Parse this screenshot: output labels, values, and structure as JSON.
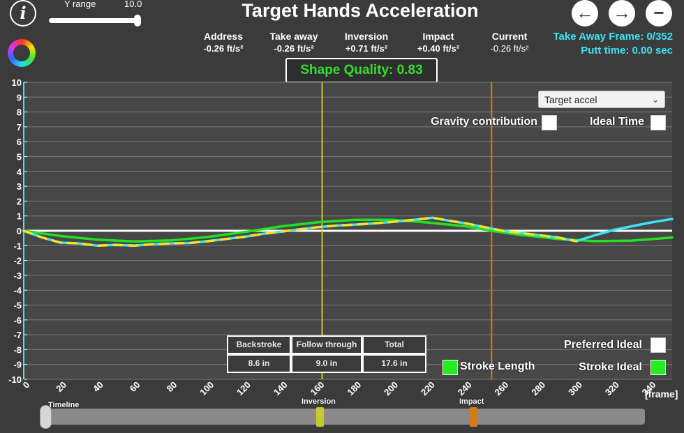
{
  "header": {
    "title": "Target Hands Acceleration",
    "y_range_label": "Y range",
    "y_range_value": "10.0",
    "y_range_level": 1.0,
    "info_label": "i"
  },
  "stats": [
    {
      "label": "Address",
      "value": "-0.26 ft/s²"
    },
    {
      "label": "Take away",
      "value": "-0.26 ft/s²"
    },
    {
      "label": "Inversion",
      "value": "+0.71 ft/s²"
    },
    {
      "label": "Impact",
      "value": "+0.40 ft/s²"
    },
    {
      "label": "Current",
      "value": "-0.26 ft/s²"
    }
  ],
  "frame_info": {
    "take_away": "Take Away Frame: 0/352",
    "putt_time": "Putt time: 0.00 sec"
  },
  "shape_quality": "Shape Quality: 0.83",
  "dropdown": {
    "selected": "Target accel"
  },
  "options": {
    "gravity": "Gravity contribution",
    "ideal_time": "Ideal Time",
    "preferred_ideal": "Preferred Ideal",
    "stroke_ideal": "Stroke Ideal",
    "stroke_length": "Stroke Length"
  },
  "stroke_table": {
    "headers": [
      "Backstroke",
      "Follow through",
      "Total"
    ],
    "values": [
      "8.6 in",
      "9.0 in",
      "17.6 in"
    ]
  },
  "timeline": {
    "label": "Timeline",
    "inversion": "Inversion",
    "impact": "Impact",
    "inversion_frame": 161,
    "impact_frame": 251
  },
  "colors": {
    "ideal": "#22e022",
    "measured_cyan": "#3fe3f5",
    "measured_yellow": "#f2e22a",
    "inversion_line": "#c8c832",
    "impact_line": "#d67a1e",
    "zero_line": "#ffffff",
    "accent": "#3fe3f5"
  },
  "chart_data": {
    "type": "line",
    "xlabel": "[frame]",
    "ylabel": "",
    "xlim": [
      0,
      352
    ],
    "ylim": [
      -10,
      10
    ],
    "xticks": [
      0,
      20,
      40,
      60,
      80,
      100,
      120,
      140,
      160,
      180,
      200,
      220,
      240,
      260,
      280,
      300,
      320,
      340
    ],
    "yticks": [
      10,
      9,
      8,
      7,
      6,
      5,
      4,
      3,
      2,
      1,
      0,
      -1,
      -2,
      -3,
      -4,
      -5,
      -6,
      -7,
      -8,
      -9,
      -10
    ],
    "grid": true,
    "inversion_x": 162,
    "impact_x": 254,
    "series": [
      {
        "color": "#22e022",
        "x": [
          0,
          20,
          40,
          60,
          80,
          100,
          120,
          140,
          160,
          180,
          200,
          220,
          240,
          254,
          270,
          290,
          310,
          330,
          352
        ],
        "y": [
          0,
          -0.35,
          -0.6,
          -0.72,
          -0.65,
          -0.42,
          -0.08,
          0.3,
          0.58,
          0.74,
          0.74,
          0.55,
          0.3,
          0.0,
          -0.28,
          -0.55,
          -0.7,
          -0.66,
          -0.45
        ]
      },
      {
        "color": "#3fe3f5",
        "x": [
          0,
          10,
          20,
          30,
          40,
          50,
          60,
          70,
          80,
          90,
          100,
          110,
          120,
          130,
          140,
          150,
          160,
          170,
          180,
          190,
          200,
          210,
          222,
          230,
          240,
          250,
          260,
          270,
          280,
          290,
          300,
          310,
          320,
          330,
          340,
          352
        ],
        "y": [
          0,
          -0.45,
          -0.8,
          -0.85,
          -1.0,
          -0.95,
          -1.0,
          -0.9,
          -0.85,
          -0.82,
          -0.7,
          -0.55,
          -0.4,
          -0.2,
          -0.05,
          0.1,
          0.25,
          0.35,
          0.42,
          0.5,
          0.6,
          0.72,
          0.88,
          0.7,
          0.5,
          0.25,
          0.0,
          -0.15,
          -0.3,
          -0.45,
          -0.7,
          -0.3,
          0.05,
          0.3,
          0.55,
          0.8
        ]
      },
      {
        "color": "#f2e22a",
        "x": [
          0,
          10,
          20,
          30,
          40,
          50,
          60,
          70,
          80,
          90,
          100,
          110,
          120,
          130,
          140,
          150,
          160,
          170,
          180,
          190,
          200,
          210,
          222,
          230,
          240,
          250,
          260,
          270,
          280,
          290,
          300
        ],
        "y": [
          0,
          -0.45,
          -0.8,
          -0.85,
          -1.0,
          -0.95,
          -1.0,
          -0.9,
          -0.85,
          -0.82,
          -0.7,
          -0.55,
          -0.4,
          -0.2,
          -0.05,
          0.1,
          0.25,
          0.35,
          0.42,
          0.5,
          0.6,
          0.72,
          0.88,
          0.7,
          0.5,
          0.25,
          0.0,
          -0.15,
          -0.3,
          -0.45,
          -0.7
        ]
      }
    ]
  }
}
